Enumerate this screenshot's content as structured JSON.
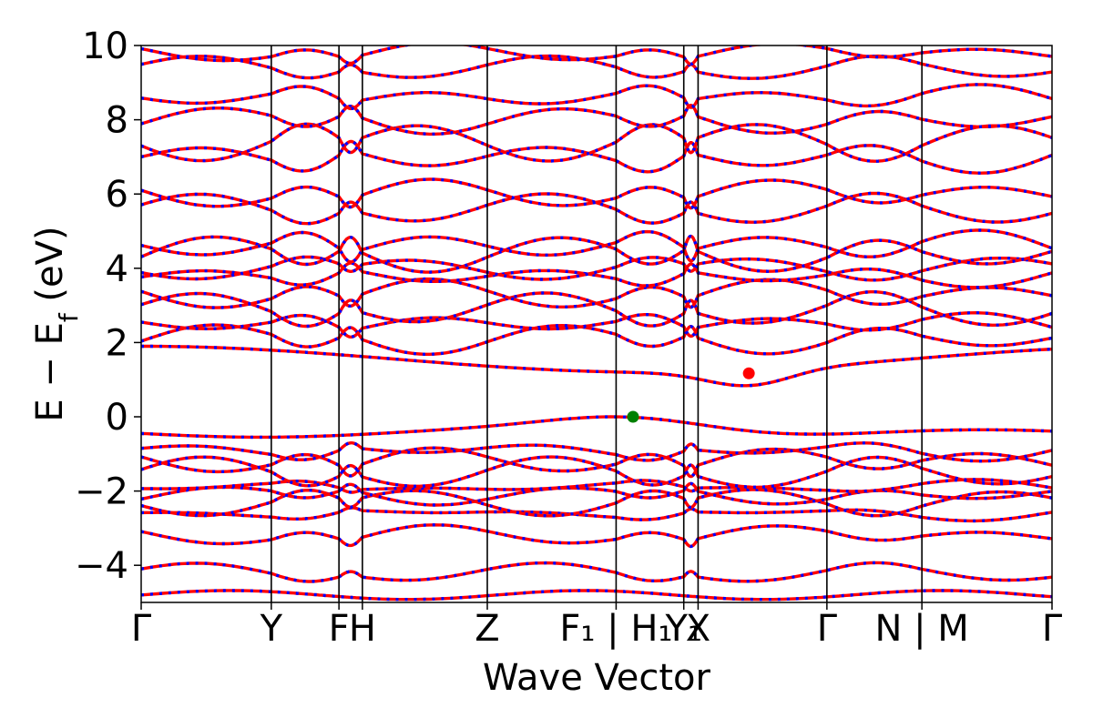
{
  "chart_data": {
    "type": "line",
    "title": "",
    "xlabel": "Wave Vector",
    "ylabel": "E − E_f (eV)",
    "ylabel_parts": {
      "main": "E − E",
      "sub": "f",
      "unit": " (eV)"
    },
    "ylim": [
      -5,
      10
    ],
    "y_ticks": [
      {
        "value": 10,
        "label": "10"
      },
      {
        "value": 8,
        "label": "8"
      },
      {
        "value": 6,
        "label": "6"
      },
      {
        "value": 4,
        "label": "4"
      },
      {
        "value": 2,
        "label": "2"
      },
      {
        "value": 0,
        "label": "0"
      },
      {
        "value": -2,
        "label": "−2"
      },
      {
        "value": -4,
        "label": "−4"
      }
    ],
    "xlim": [
      0,
      7.0
    ],
    "k_points": [
      {
        "x": 0.0,
        "label": "Γ"
      },
      {
        "x": 1.0,
        "label": "Y"
      },
      {
        "x": 1.52,
        "label": "F"
      },
      {
        "x": 1.7,
        "label": "H"
      },
      {
        "x": 2.66,
        "label": "Z"
      },
      {
        "x": 3.65,
        "label": "F₁ | H₁"
      },
      {
        "x": 4.17,
        "label": "Y₁"
      },
      {
        "x": 4.28,
        "label": "X"
      },
      {
        "x": 5.27,
        "label": "Γ"
      },
      {
        "x": 6.0,
        "label": "N | M"
      },
      {
        "x": 7.0,
        "label": "Γ"
      }
    ],
    "grid": false,
    "series_colors": {
      "spin_up": "#ff0000",
      "spin_down": "#0000ff"
    },
    "vbm": {
      "x": 3.78,
      "y": 0.0,
      "color": "#008000"
    },
    "cbm": {
      "x": 4.67,
      "y": 1.17,
      "color": "#ff0000"
    },
    "band_edges_gamma": [
      -4.8,
      -4.2,
      -3.2,
      -2.6,
      -2.3,
      -2.1,
      -1.9,
      -1.5,
      -1.2,
      -0.9,
      -0.4,
      1.6,
      2.1,
      2.5,
      2.9,
      3.3,
      3.8,
      4.0,
      4.4,
      4.6,
      5.6,
      6.0,
      7.0,
      7.4,
      8.0,
      8.6,
      9.4,
      9.8
    ],
    "band_offsets": [
      0.0,
      0.15,
      -0.2,
      0.1,
      -0.25,
      0.2,
      -0.1,
      0.3,
      -0.3,
      0.18,
      0.05,
      0.0,
      0.3,
      -0.25,
      0.35,
      -0.3,
      0.25,
      -0.2,
      0.4,
      -0.35,
      0.3,
      -0.3,
      0.35,
      -0.4,
      0.3,
      -0.25,
      0.2,
      -0.2
    ]
  }
}
